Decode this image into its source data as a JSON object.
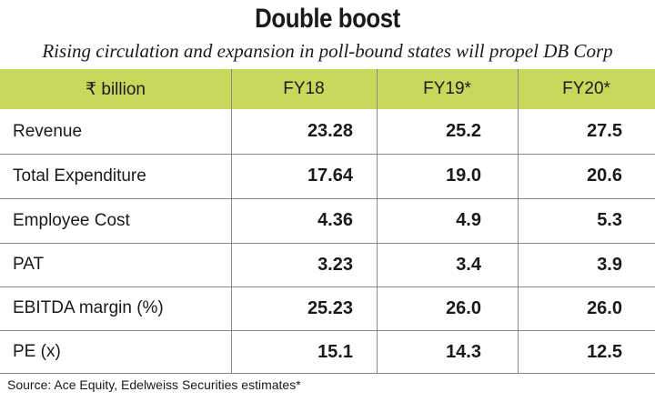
{
  "title": "Double boost",
  "subtitle": "Rising circulation and expansion in poll-bound states will propel DB Corp",
  "table": {
    "headers": [
      "₹ billion",
      "FY18",
      "FY19*",
      "FY20*"
    ],
    "rows": [
      {
        "label": "Revenue",
        "values": [
          "23.28",
          "25.2",
          "27.5"
        ]
      },
      {
        "label": "Total Expenditure",
        "values": [
          "17.64",
          "19.0",
          "20.6"
        ]
      },
      {
        "label": "Employee Cost",
        "values": [
          "4.36",
          "4.9",
          "5.3"
        ]
      },
      {
        "label": "PAT",
        "values": [
          "3.23",
          "3.4",
          "3.9"
        ]
      },
      {
        "label": "EBITDA margin (%)",
        "values": [
          "25.23",
          "26.0",
          "26.0"
        ]
      },
      {
        "label": "PE (x)",
        "values": [
          "15.1",
          "14.3",
          "12.5"
        ]
      }
    ]
  },
  "source": "Source: Ace Equity, Edelweiss Securities estimates*",
  "colors": {
    "header_bg": "#c8d85a",
    "rules": "#8a8a8a"
  }
}
